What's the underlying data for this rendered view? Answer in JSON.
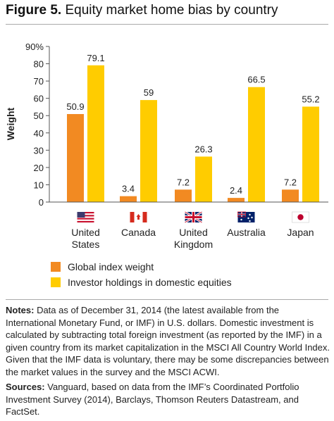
{
  "figure": {
    "label": "Figure 5.",
    "title": "Equity market home bias by country"
  },
  "chart_data": {
    "type": "bar",
    "categories": [
      "United States",
      "Canada",
      "United Kingdom",
      "Australia",
      "Japan"
    ],
    "category_labels": [
      [
        "United",
        "States"
      ],
      [
        "Canada"
      ],
      [
        "United",
        "Kingdom"
      ],
      [
        "Australia"
      ],
      [
        "Japan"
      ]
    ],
    "flags": [
      "us-flag-icon",
      "canada-flag-icon",
      "uk-flag-icon",
      "australia-flag-icon",
      "japan-flag-icon"
    ],
    "series": [
      {
        "name": "Global index weight",
        "color": "#f28a22",
        "values": [
          50.9,
          3.4,
          7.2,
          2.4,
          7.2
        ],
        "labels": [
          "50.9",
          "3.4",
          "7.2",
          "2.4",
          "7.2"
        ]
      },
      {
        "name": "Investor holdings in domestic equities",
        "color": "#ffcc00",
        "values": [
          79.1,
          59,
          26.3,
          66.5,
          55.2
        ],
        "labels": [
          "79.1",
          "59",
          "26.3",
          "66.5",
          "55.2"
        ]
      }
    ],
    "ylabel": "Weight",
    "ylim": [
      0,
      90
    ],
    "yticks": [
      0,
      10,
      20,
      30,
      40,
      50,
      60,
      70,
      80,
      90
    ],
    "ytick_labels": [
      "0",
      "10",
      "20",
      "30",
      "40",
      "50",
      "60",
      "70",
      "80",
      "90%"
    ],
    "grid": false,
    "legend_position": "bottom"
  },
  "notes": {
    "notes_label": "Notes:",
    "notes_text": " Data as of December 31, 2014 (the latest available from the International Monetary Fund, or IMF) in U.S. dollars. Domestic investment is calculated by subtracting total foreign investment (as reported by the IMF) in a given country from its market capitalization in the MSCI All Country World Index. Given that the IMF data is voluntary, there may be some discrepancies between the market values in the survey and the MSCI ACWI.",
    "sources_label": "Sources:",
    "sources_text": " Vanguard, based on data from the IMF’s Coordinated Portfolio Investment Survey (2014), Barclays, Thomson Reuters Datastream, and FactSet."
  }
}
